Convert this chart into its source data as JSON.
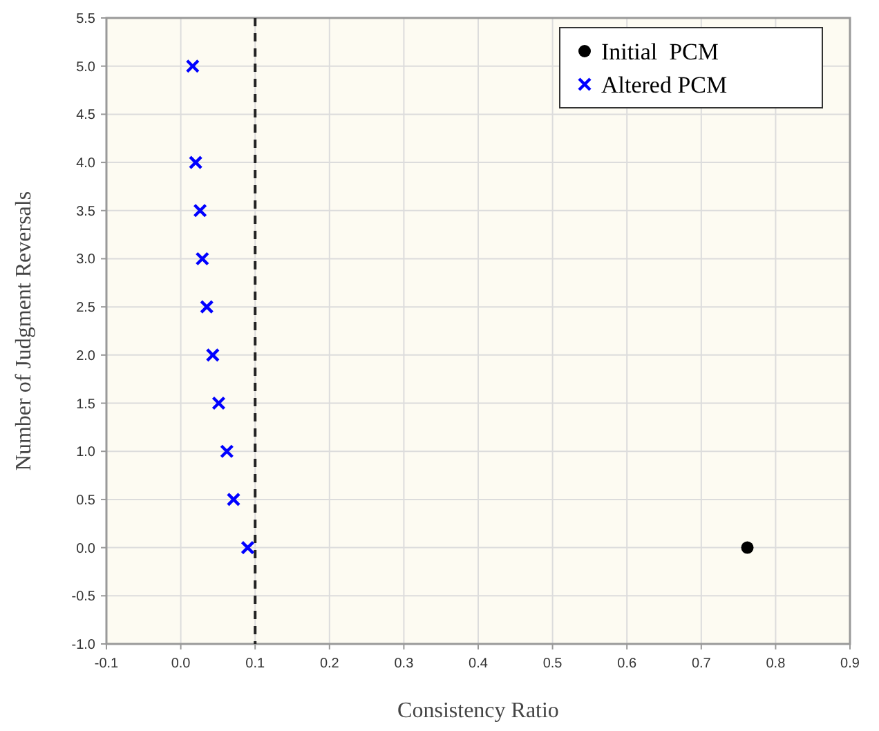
{
  "chart_data": {
    "type": "scatter",
    "xlabel": "Consistency Ratio",
    "ylabel": "Number of Judgment Reversals",
    "xlim": [
      -0.1,
      0.9
    ],
    "xticks": [
      -0.1,
      {
        "value": 0,
        "label": "0.0"
      },
      0.1,
      0.2,
      0.3,
      0.4,
      0.5,
      0.6,
      0.7,
      0.8,
      0.9
    ],
    "ylim": [
      -1.0,
      5.5
    ],
    "yticks": [
      {
        "value": -1,
        "label": "-1.0"
      },
      -0.5,
      {
        "value": 0,
        "label": "0.0"
      },
      0.5,
      {
        "value": 1,
        "label": "1.0"
      },
      1.5,
      {
        "value": 2,
        "label": "2.0"
      },
      2.5,
      {
        "value": 3,
        "label": "3.0"
      },
      3.5,
      {
        "value": 4,
        "label": "4.0"
      },
      4.5,
      {
        "value": 5,
        "label": "5.0"
      },
      5.5
    ],
    "grid": true,
    "legend": "top right",
    "ref_lines": [
      {
        "axis": "x",
        "value": 0.1,
        "color": "#222222",
        "line_style": "dashed"
      }
    ],
    "series": [
      {
        "name": "Initial  PCM",
        "color": "#000000",
        "marker": "circle",
        "x": [
          0.762
        ],
        "values": [
          0
        ]
      },
      {
        "name": "Altered PCM",
        "color": "#0000ff",
        "marker": "cross",
        "x": [
          0.016,
          0.02,
          0.026,
          0.029,
          0.035,
          0.043,
          0.051,
          0.062,
          0.071,
          0.09
        ],
        "values": [
          5,
          4,
          3.5,
          3,
          2.5,
          2,
          1.5,
          1,
          0.5,
          0
        ]
      }
    ]
  }
}
